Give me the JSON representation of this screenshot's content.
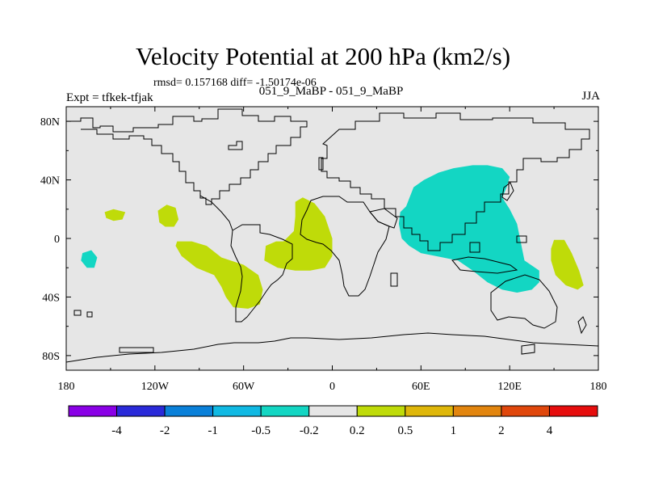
{
  "title": "Velocity Potential at 200 hPa (km2/s)",
  "stats_text": "rmsd= 0.157168 diff= -1.50174e-06",
  "experiment_text": "Expt = tfkek-tfjak",
  "cases_text": "051_9_MaBP - 051_9_MaBP",
  "season_text": "JJA",
  "map": {
    "lon_range": [
      -180,
      180
    ],
    "lat_range": [
      -90,
      90
    ],
    "lon_ticks": [
      {
        "value": -180,
        "label": "180"
      },
      {
        "value": -120,
        "label": "120W"
      },
      {
        "value": -60,
        "label": "60W"
      },
      {
        "value": 0,
        "label": "0"
      },
      {
        "value": 60,
        "label": "60E"
      },
      {
        "value": 120,
        "label": "120E"
      },
      {
        "value": 180,
        "label": "180"
      }
    ],
    "lat_ticks": [
      {
        "value": 80,
        "label": "80N"
      },
      {
        "value": 40,
        "label": "40N"
      },
      {
        "value": 0,
        "label": "0"
      },
      {
        "value": -40,
        "label": "40S"
      },
      {
        "value": -80,
        "label": "80S"
      }
    ],
    "background_color": "#e6e6e6"
  },
  "colorbar": {
    "colors": [
      "#8a00e6",
      "#2a2ad9",
      "#0a80d9",
      "#10b9e3",
      "#13d6c3",
      "#e6e6e6",
      "#bfdb09",
      "#dfb70a",
      "#e2850e",
      "#e0470c",
      "#e60d0d"
    ],
    "labels": [
      "-4",
      "-2",
      "-1",
      "-0.5",
      "-0.2",
      "0.2",
      "0.5",
      "1",
      "2",
      "4"
    ]
  },
  "shaded_regions": [
    {
      "level": "-0.5",
      "color": "#13d6c3",
      "points": [
        [
          50,
          22
        ],
        [
          55,
          35
        ],
        [
          62,
          40
        ],
        [
          72,
          45
        ],
        [
          82,
          48
        ],
        [
          95,
          50
        ],
        [
          105,
          50
        ],
        [
          115,
          48
        ],
        [
          120,
          42
        ],
        [
          118,
          35
        ],
        [
          115,
          28
        ],
        [
          120,
          20
        ],
        [
          125,
          10
        ],
        [
          128,
          -5
        ],
        [
          130,
          -15
        ],
        [
          140,
          -22
        ],
        [
          140,
          -30
        ],
        [
          135,
          -35
        ],
        [
          125,
          -37
        ],
        [
          115,
          -35
        ],
        [
          105,
          -30
        ],
        [
          95,
          -22
        ],
        [
          85,
          -15
        ],
        [
          70,
          -12
        ],
        [
          60,
          -10
        ],
        [
          52,
          -5
        ],
        [
          47,
          0
        ],
        [
          45,
          10
        ],
        [
          46,
          18
        ]
      ]
    },
    {
      "level": "-0.5",
      "color": "#13d6c3",
      "points": [
        [
          -169,
          -10
        ],
        [
          -163,
          -8
        ],
        [
          -159,
          -13
        ],
        [
          -161,
          -20
        ],
        [
          -166,
          -20
        ],
        [
          -170,
          -15
        ]
      ]
    },
    {
      "level": "0.5",
      "color": "#bfdb09",
      "points": [
        [
          -25,
          25
        ],
        [
          -20,
          28
        ],
        [
          -12,
          24
        ],
        [
          -5,
          15
        ],
        [
          0,
          0
        ],
        [
          0,
          -12
        ],
        [
          -5,
          -20
        ],
        [
          -15,
          -22
        ],
        [
          -25,
          -22
        ],
        [
          -37,
          -20
        ],
        [
          -46,
          -15
        ],
        [
          -45,
          -5
        ],
        [
          -38,
          -2
        ],
        [
          -33,
          -2
        ],
        [
          -26,
          5
        ],
        [
          -25,
          15
        ]
      ]
    },
    {
      "level": "0.5",
      "color": "#bfdb09",
      "points": [
        [
          -105,
          -2
        ],
        [
          -95,
          -2
        ],
        [
          -85,
          -5
        ],
        [
          -75,
          -13
        ],
        [
          -60,
          -18
        ],
        [
          -50,
          -25
        ],
        [
          -47,
          -35
        ],
        [
          -49,
          -45
        ],
        [
          -57,
          -48
        ],
        [
          -67,
          -47
        ],
        [
          -72,
          -40
        ],
        [
          -75,
          -33
        ],
        [
          -80,
          -25
        ],
        [
          -92,
          -20
        ],
        [
          -102,
          -12
        ],
        [
          -106,
          -5
        ]
      ]
    },
    {
      "level": "0.5",
      "color": "#bfdb09",
      "points": [
        [
          -118,
          19
        ],
        [
          -112,
          23
        ],
        [
          -106,
          21
        ],
        [
          -104,
          13
        ],
        [
          -107,
          8
        ],
        [
          -113,
          8
        ],
        [
          -117,
          11
        ]
      ]
    },
    {
      "level": "0.5",
      "color": "#bfdb09",
      "points": [
        [
          -154,
          18
        ],
        [
          -148,
          20
        ],
        [
          -140,
          18
        ],
        [
          -142,
          13
        ],
        [
          -148,
          12
        ],
        [
          -153,
          14
        ]
      ]
    },
    {
      "level": "0.5",
      "color": "#bfdb09",
      "points": [
        [
          150,
          -1
        ],
        [
          157,
          -1
        ],
        [
          162,
          -10
        ],
        [
          167,
          -22
        ],
        [
          170,
          -32
        ],
        [
          166,
          -35
        ],
        [
          158,
          -32
        ],
        [
          151,
          -25
        ],
        [
          148,
          -15
        ],
        [
          148,
          -7
        ]
      ]
    }
  ]
}
